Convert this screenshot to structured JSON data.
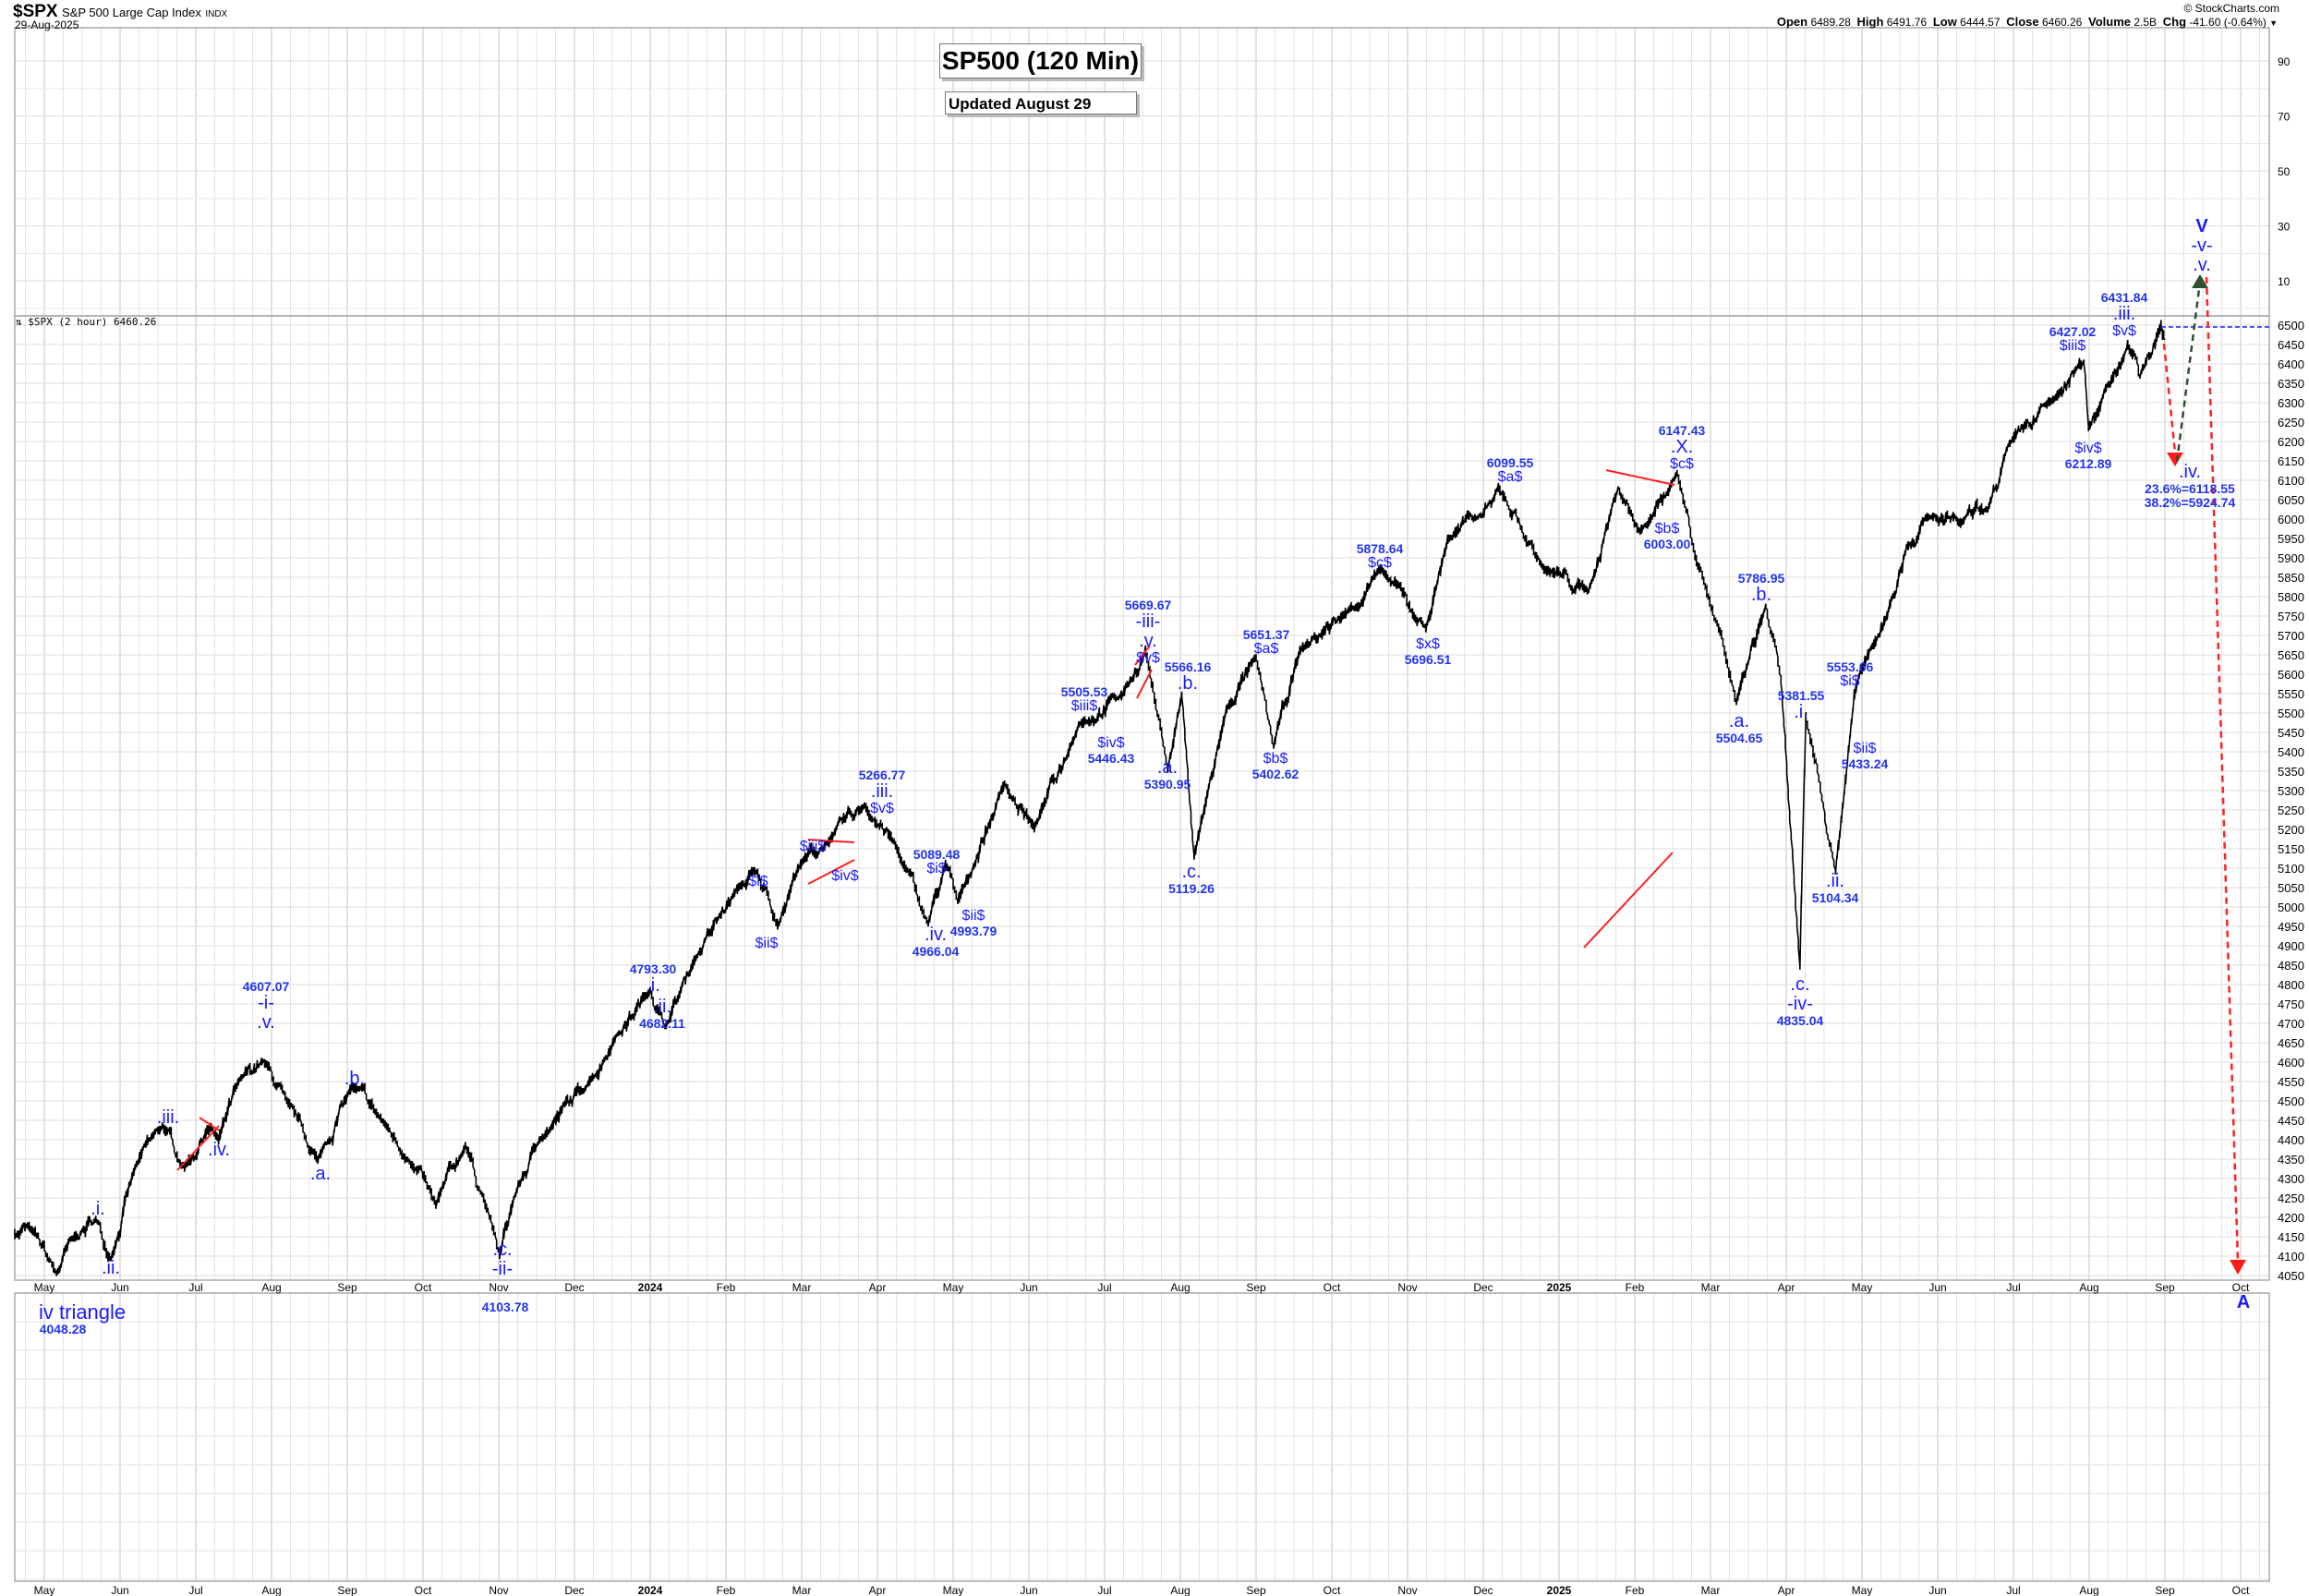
{
  "header": {
    "symbol": "$SPX",
    "name": "S&P 500 Large Cap Index",
    "exchange": "INDX",
    "date": "29-Aug-2025",
    "copyright": "© StockCharts.com",
    "open_label": "Open",
    "open": "6489.28",
    "high_label": "High",
    "high": "6491.76",
    "low_label": "Low",
    "low": "6444.57",
    "close_label": "Close",
    "close": "6460.26",
    "volume_label": "Volume",
    "volume": "2.5B",
    "chg_label": "Chg",
    "chg": "-41.60 (-0.64%)",
    "dropdown_icon": "chevron-down-icon"
  },
  "title": "SP500 (120 Min)",
  "subtitle": "Updated August 29",
  "legend": "$SPX (2 hour) 6460.26",
  "annotations": [
    {
      "lines": [
        ".i."
      ]
    },
    {
      "lines": [
        ".ii."
      ]
    },
    {
      "lines": [
        ".iii."
      ]
    },
    {
      "lines": [
        ".iv."
      ]
    },
    {
      "lines": [
        "4607.07",
        "-i-",
        ".v."
      ]
    },
    {
      "lines": [
        ".a."
      ]
    },
    {
      "lines": [
        ".b."
      ]
    },
    {
      "lines": [
        ".c.",
        "-ii-"
      ]
    },
    {
      "lines": [
        "4103.78"
      ]
    },
    {
      "lines": [
        "4793.30",
        ".i."
      ]
    },
    {
      "lines": [
        ".ii.",
        "4682.11"
      ]
    },
    {
      "lines": [
        "$i$"
      ]
    },
    {
      "lines": [
        "$ii$"
      ]
    },
    {
      "lines": [
        "$iii$"
      ]
    },
    {
      "lines": [
        "$iv$"
      ]
    },
    {
      "lines": [
        "5266.77",
        ".iii.",
        "$v$"
      ]
    },
    {
      "lines": [
        "5089.48",
        "$i$"
      ]
    },
    {
      "lines": [
        "$ii$",
        "4993.79"
      ]
    },
    {
      "lines": [
        ".iv.",
        "4966.04"
      ]
    },
    {
      "lines": [
        "5505.53",
        "$iii$"
      ]
    },
    {
      "lines": [
        "$iv$",
        "5446.43"
      ]
    },
    {
      "lines": [
        "5669.67",
        "-iii-",
        ".v.",
        "$v$"
      ]
    },
    {
      "lines": [
        ".a.",
        "5390.95"
      ]
    },
    {
      "lines": [
        "5566.16",
        ".b."
      ]
    },
    {
      "lines": [
        ".c.",
        "5119.26"
      ]
    },
    {
      "lines": [
        "5651.37",
        "$a$"
      ]
    },
    {
      "lines": [
        "$b$",
        "5402.62"
      ]
    },
    {
      "lines": [
        "5878.64",
        "$c$"
      ]
    },
    {
      "lines": [
        "$x$",
        "5696.51"
      ]
    },
    {
      "lines": [
        "6099.55",
        "$a$"
      ]
    },
    {
      "lines": [
        "6147.43",
        ".X.",
        "$c$"
      ]
    },
    {
      "lines": [
        "$b$",
        "6003.00"
      ]
    },
    {
      "lines": [
        "5786.95",
        ".b."
      ]
    },
    {
      "lines": [
        ".a.",
        "5504.65"
      ]
    },
    {
      "lines": [
        "5381.55",
        ".i."
      ]
    },
    {
      "lines": [
        "5553.66",
        "$i$"
      ]
    },
    {
      "lines": [
        "$ii$",
        "5433.24"
      ]
    },
    {
      "lines": [
        ".ii.",
        "5104.34"
      ]
    },
    {
      "lines": [
        ".c.",
        "-iv-",
        "4835.04"
      ]
    },
    {
      "lines": [
        "6427.02",
        "$iii$"
      ]
    },
    {
      "lines": [
        "6431.84",
        ".iii.",
        "$v$"
      ]
    },
    {
      "lines": [
        "$iv$",
        "6212.89"
      ]
    },
    {
      "lines": [
        ".iv.",
        "23.6%=6118.55",
        "38.2%=5924.74"
      ]
    },
    {
      "lines": [
        "V",
        "-v-",
        ".v."
      ]
    },
    {
      "lines": [
        "A"
      ]
    }
  ],
  "lower_note": {
    "title": "iv triangle",
    "value": "4048.28"
  },
  "colors": {
    "label": "#1a1aff",
    "price": "#000000",
    "trendline": "#ff2020",
    "projection_up": "#2f4f2f",
    "projection_down": "#ff2020",
    "close_line": "#1a1aff"
  },
  "chart_data": {
    "type": "line",
    "title": "SP500 (120 Min)",
    "series_name": "$SPX (2 hour)",
    "x_tick_labels": [
      "May",
      "Jun",
      "Jul",
      "Aug",
      "Sep",
      "Oct",
      "Nov",
      "Dec",
      "2024",
      "Feb",
      "Mar",
      "Apr",
      "May",
      "Jun",
      "Jul",
      "Aug",
      "Sep",
      "Oct",
      "Nov",
      "Dec",
      "2025",
      "Feb",
      "Mar",
      "Apr",
      "May",
      "Jun",
      "Jul",
      "Aug",
      "Sep",
      "Oct"
    ],
    "x_unit": "months since May 2023",
    "y_ticks": [
      4050,
      4100,
      4150,
      4200,
      4250,
      4300,
      4350,
      4400,
      4450,
      4500,
      4550,
      4600,
      4650,
      4700,
      4750,
      4800,
      4850,
      4900,
      4950,
      5000,
      5050,
      5100,
      5150,
      5200,
      5250,
      5300,
      5350,
      5400,
      5450,
      5500,
      5550,
      5600,
      5650,
      5700,
      5750,
      5800,
      5850,
      5900,
      5950,
      6000,
      6050,
      6100,
      6150,
      6200,
      6250,
      6300,
      6350,
      6400,
      6450,
      6500
    ],
    "ylim": [
      4030,
      6520
    ],
    "upper_panel_ticks": [
      90,
      70,
      50,
      30,
      10
    ],
    "grid": true,
    "points": [
      [
        -0.39,
        4157
      ],
      [
        -0.2,
        4176
      ],
      [
        0.16,
        4055
      ],
      [
        0.4,
        4150
      ],
      [
        0.68,
        4195
      ],
      [
        0.88,
        4093
      ],
      [
        1.2,
        4330
      ],
      [
        1.56,
        4436
      ],
      [
        1.85,
        4329
      ],
      [
        2.15,
        4426
      ],
      [
        2.3,
        4400
      ],
      [
        2.6,
        4560
      ],
      [
        2.89,
        4603
      ],
      [
        3.2,
        4500
      ],
      [
        3.61,
        4348
      ],
      [
        4.06,
        4538
      ],
      [
        4.5,
        4440
      ],
      [
        4.8,
        4350
      ],
      [
        5.17,
        4233
      ],
      [
        5.56,
        4385
      ],
      [
        5.8,
        4250
      ],
      [
        6.01,
        4100
      ],
      [
        6.2,
        4250
      ],
      [
        6.54,
        4400
      ],
      [
        7.22,
        4557
      ],
      [
        7.51,
        4652
      ],
      [
        8.0,
        4786
      ],
      [
        8.19,
        4690
      ],
      [
        8.58,
        4862
      ],
      [
        9.17,
        5052
      ],
      [
        9.4,
        5090
      ],
      [
        9.56,
        5030
      ],
      [
        9.7,
        4957
      ],
      [
        9.95,
        5100
      ],
      [
        10.4,
        5180
      ],
      [
        10.83,
        5262
      ],
      [
        11.22,
        5167
      ],
      [
        11.67,
        4957
      ],
      [
        11.9,
        5110
      ],
      [
        12.06,
        5014
      ],
      [
        12.68,
        5319
      ],
      [
        13.07,
        5205
      ],
      [
        13.66,
        5471
      ],
      [
        14.24,
        5548
      ],
      [
        14.54,
        5662
      ],
      [
        14.83,
        5357
      ],
      [
        15.02,
        5548
      ],
      [
        15.18,
        5128
      ],
      [
        15.61,
        5510
      ],
      [
        16.0,
        5643
      ],
      [
        16.23,
        5414
      ],
      [
        16.58,
        5662
      ],
      [
        17.2,
        5760
      ],
      [
        17.66,
        5871
      ],
      [
        18.24,
        5719
      ],
      [
        18.53,
        5948
      ],
      [
        18.93,
        6005
      ],
      [
        19.2,
        6081
      ],
      [
        19.8,
        5871
      ],
      [
        20.39,
        5814
      ],
      [
        20.78,
        6081
      ],
      [
        21.07,
        5967
      ],
      [
        21.56,
        6119
      ],
      [
        21.95,
        5814
      ],
      [
        22.34,
        5529
      ],
      [
        22.73,
        5776
      ],
      [
        22.93,
        5586
      ],
      [
        23.18,
        4843
      ],
      [
        23.26,
        5490
      ],
      [
        23.41,
        5357
      ],
      [
        23.65,
        5090
      ],
      [
        23.9,
        5548
      ],
      [
        24.1,
        5662
      ],
      [
        24.39,
        5795
      ],
      [
        24.59,
        5929
      ],
      [
        24.88,
        6005
      ],
      [
        25.3,
        5990
      ],
      [
        25.66,
        6024
      ],
      [
        25.95,
        6195
      ],
      [
        26.54,
        6310
      ],
      [
        26.93,
        6405
      ],
      [
        26.99,
        6233
      ],
      [
        27.2,
        6330
      ],
      [
        27.51,
        6449
      ],
      [
        27.67,
        6367
      ],
      [
        27.95,
        6500
      ],
      [
        28.0,
        6462
      ]
    ],
    "projections": [
      {
        "name": "wave .iv. target",
        "from": [
          28.0,
          6462
        ],
        "to": [
          28.3,
          6150
        ],
        "style": "red-dashed"
      },
      {
        "name": "wave .v. target",
        "from": [
          28.3,
          6150
        ],
        "to": [
          28.75,
          "upper panel"
        ],
        "style": "green-dashed"
      },
      {
        "name": "wave A target",
        "from": [
          28.85,
          "upper panel"
        ],
        "to": [
          29.3,
          4050
        ],
        "style": "red-dashed"
      }
    ]
  }
}
